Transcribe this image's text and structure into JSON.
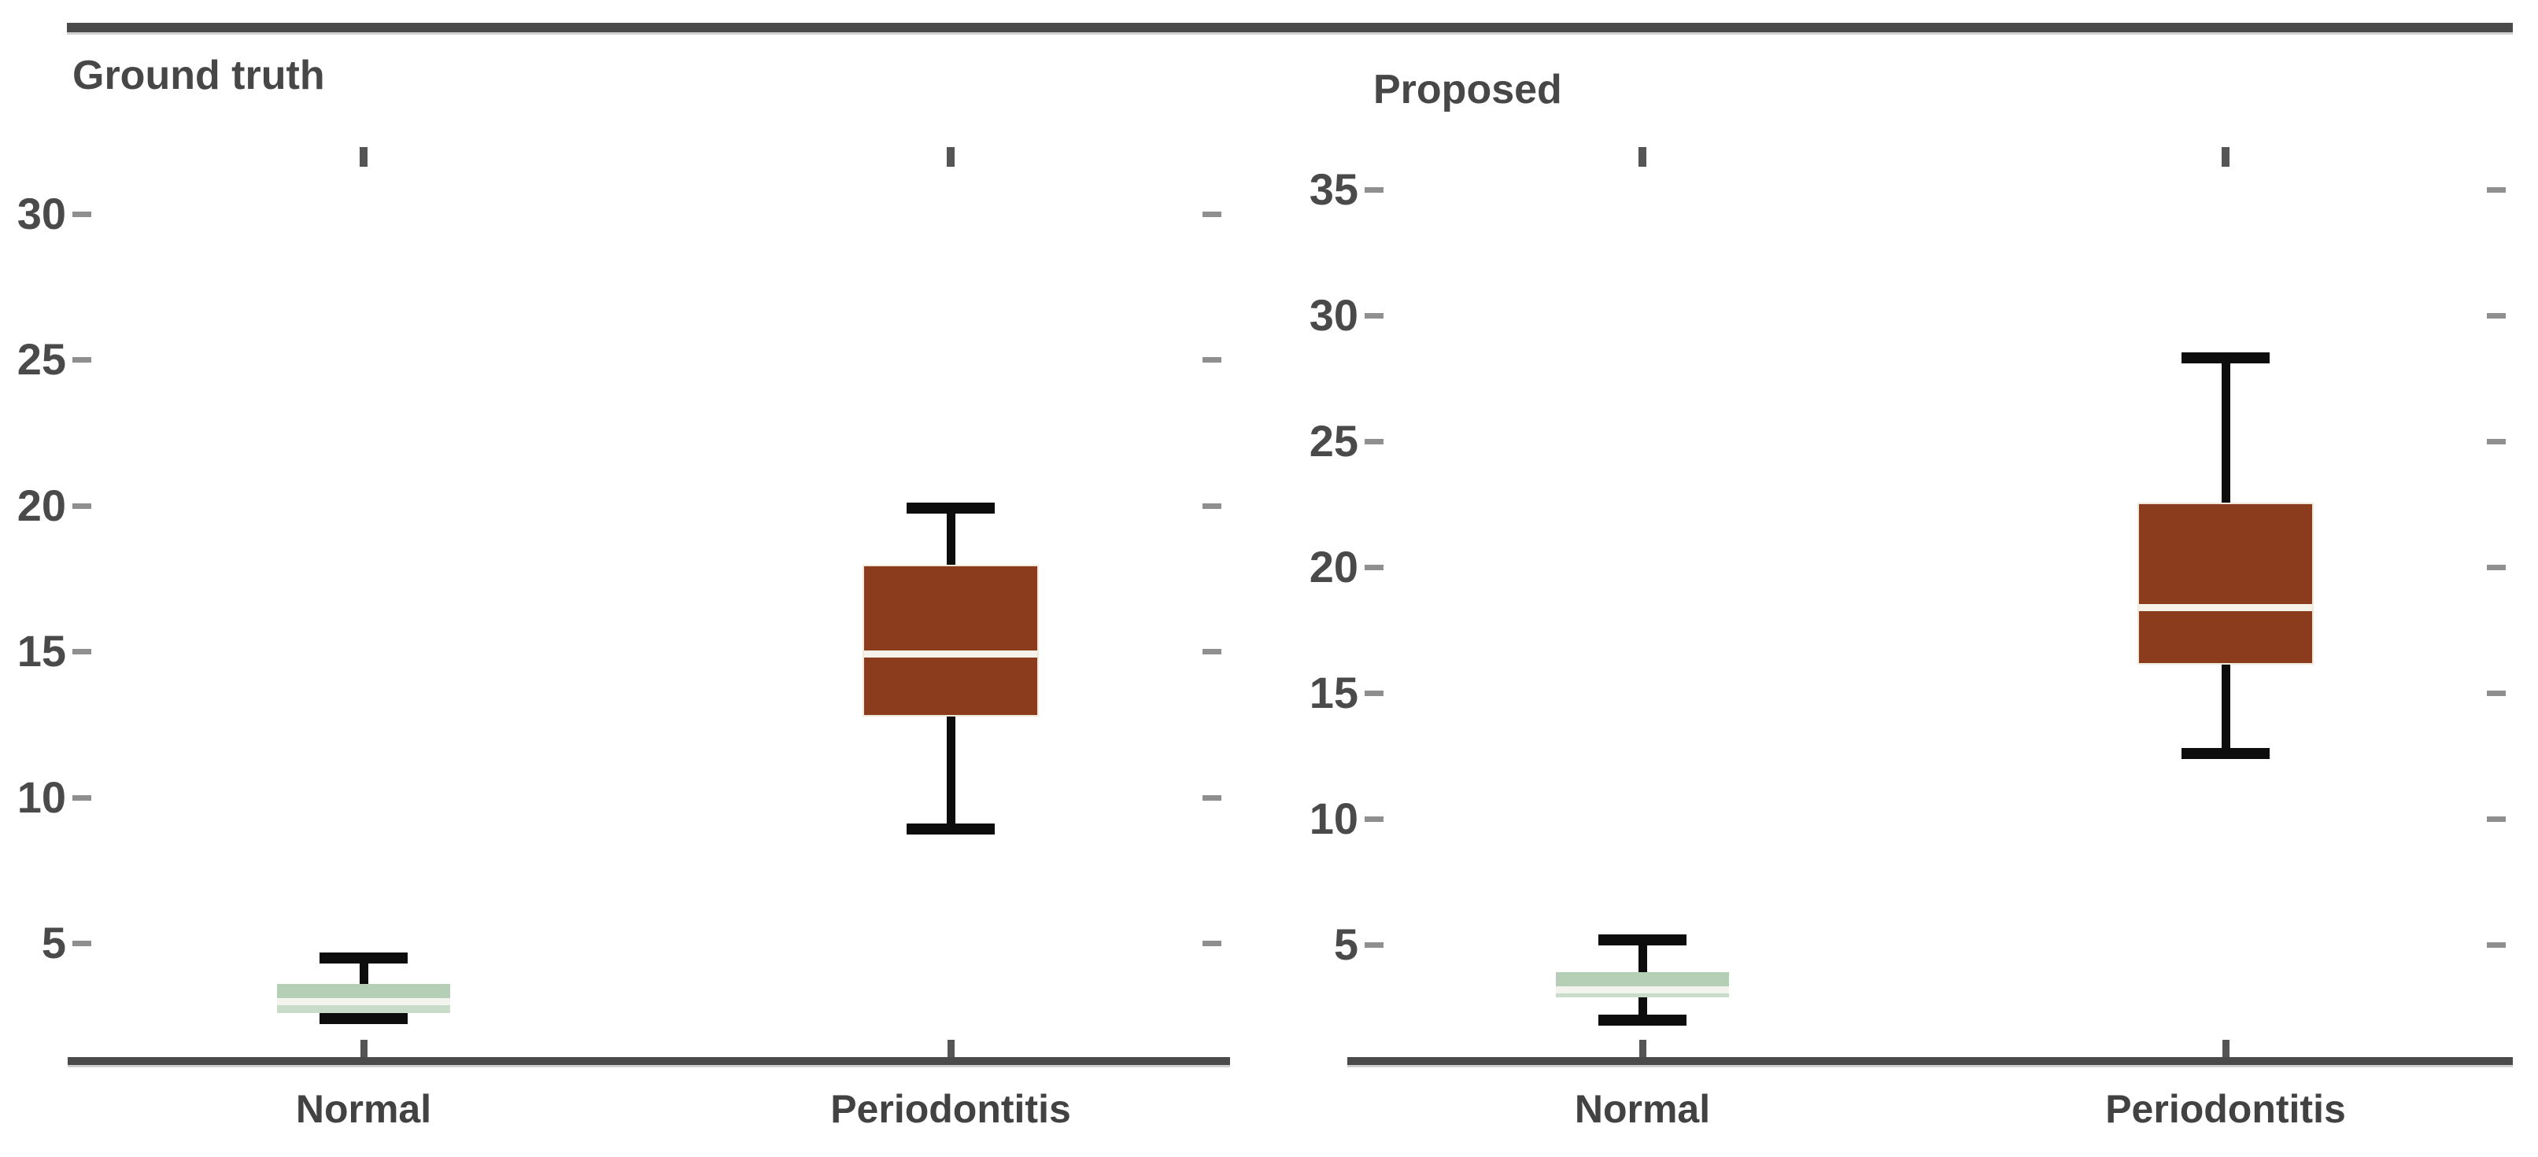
{
  "figure": {
    "background": "#ffffff",
    "description": "Two side-by-side vertical box plots"
  },
  "colors": {
    "frame": "#4a4a4a",
    "text": "#474747",
    "axis_label": "#4a4a4a",
    "tick_dash": "#8f8f8f",
    "tick_mark": "#555555",
    "whisker": "#0d0d0d",
    "normal_box": "#b5cfb6",
    "normal_box_light": "#c9dcc9",
    "normal_median": "#f4f4ee",
    "periodontitis_box": "#8b3c1d",
    "periodontitis_median": "#f6f2ea"
  },
  "chart_data": [
    {
      "type": "boxplot",
      "title": "Ground truth",
      "categories": [
        "Normal",
        "Periodontitis"
      ],
      "xlabel": "",
      "ylabel": "",
      "yticks": [
        30,
        25,
        20,
        15,
        10,
        5
      ],
      "ylim": [
        1.0,
        32.3
      ],
      "grid": false,
      "legend": "none",
      "series": [
        {
          "name": "Normal",
          "whisker_low": 2.4,
          "q1": 2.6,
          "median": 3.0,
          "q3": 3.6,
          "whisker_high": 4.5
        },
        {
          "name": "Periodontitis",
          "whisker_low": 8.9,
          "q1": 12.8,
          "median": 14.9,
          "q3": 17.9,
          "whisker_high": 19.9
        }
      ]
    },
    {
      "type": "boxplot",
      "title": "Proposed",
      "categories": [
        "Normal",
        "Periodontitis"
      ],
      "xlabel": "",
      "ylabel": "",
      "yticks": [
        35,
        30,
        25,
        20,
        15,
        10,
        5
      ],
      "ylim": [
        0.4,
        36.3
      ],
      "grid": false,
      "legend": "none",
      "series": [
        {
          "name": "Normal",
          "whisker_low": 2.0,
          "q1": 2.9,
          "median": 3.2,
          "q3": 3.9,
          "whisker_high": 5.2
        },
        {
          "name": "Periodontitis",
          "whisker_low": 12.6,
          "q1": 16.2,
          "median": 18.4,
          "q3": 22.5,
          "whisker_high": 28.3
        }
      ]
    }
  ]
}
